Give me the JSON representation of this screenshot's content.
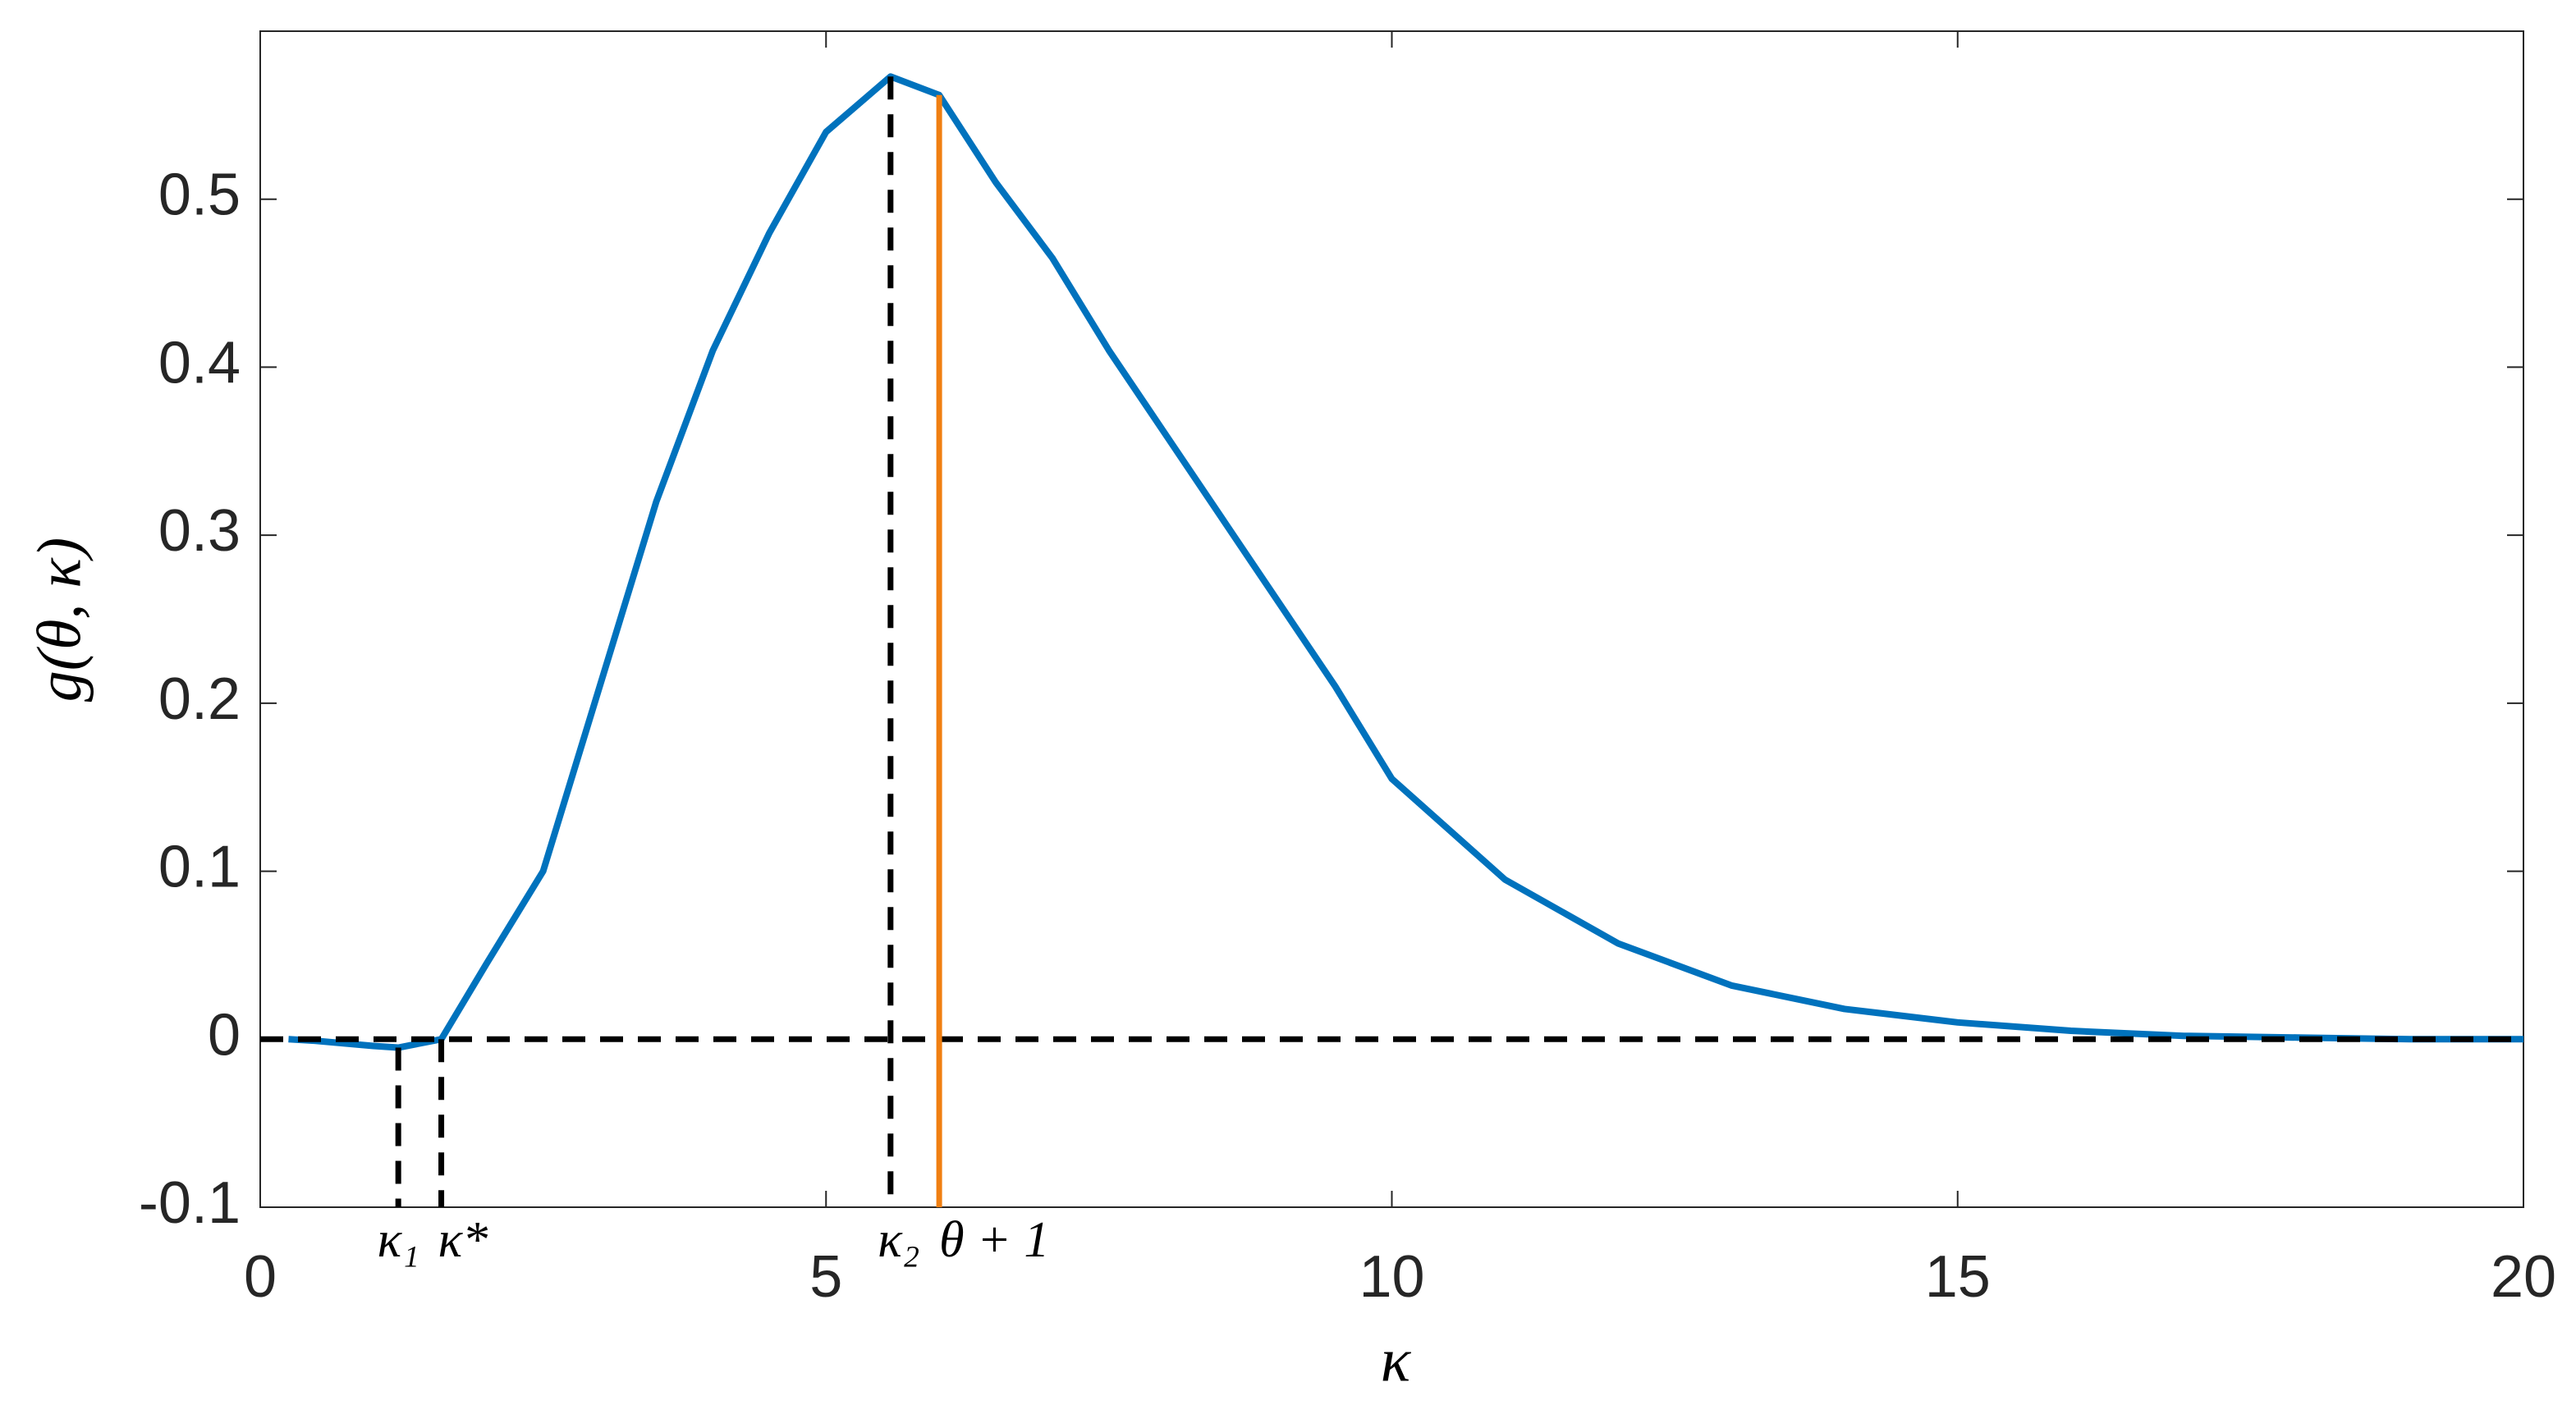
{
  "chart_data": {
    "type": "line",
    "xlabel": "κ",
    "ylabel": "g(θ, κ)",
    "x": [
      0.25,
      0.5,
      1.0,
      1.22,
      1.6,
      2.0,
      2.5,
      3.0,
      3.5,
      4.0,
      4.5,
      5.0,
      5.57,
      6.0,
      6.5,
      7.0,
      7.5,
      8.0,
      8.5,
      9.0,
      9.5,
      10.0,
      11.0,
      12.0,
      13.0,
      14.0,
      15.0,
      16.0,
      17.0,
      18.0,
      19.0,
      20.0
    ],
    "values": [
      0,
      -0.001,
      -0.004,
      -0.005,
      0,
      0.045,
      0.1,
      0.21,
      0.32,
      0.41,
      0.48,
      0.54,
      0.573,
      0.562,
      0.51,
      0.465,
      0.41,
      0.36,
      0.31,
      0.26,
      0.21,
      0.155,
      0.095,
      0.057,
      0.032,
      0.018,
      0.01,
      0.005,
      0.002,
      0.001,
      0,
      0
    ],
    "color": "#0072bd",
    "hlines": [
      {
        "y": 0,
        "color": "#000000",
        "style": "dashed"
      }
    ],
    "vlines": [
      {
        "x": 1.22,
        "ytop": -0.005,
        "label": "κ₁",
        "color": "#000000",
        "style": "dashed"
      },
      {
        "x": 1.6,
        "ytop": 0,
        "label": "κ*",
        "color": "#000000",
        "style": "dashed"
      },
      {
        "x": 5.57,
        "ytop": 0.573,
        "label": "κ₂",
        "color": "#000000",
        "style": "dashed"
      },
      {
        "x": 6.0,
        "ytop": 0.562,
        "label": "θ + 1",
        "color": "#f07f12",
        "style": "solid"
      }
    ],
    "xlim": [
      0,
      20
    ],
    "ylim": [
      -0.1,
      0.6
    ],
    "xticks": [
      0,
      5,
      10,
      15,
      20
    ],
    "yticks": [
      -0.1,
      0,
      0.1,
      0.2,
      0.3,
      0.4,
      0.5
    ]
  }
}
